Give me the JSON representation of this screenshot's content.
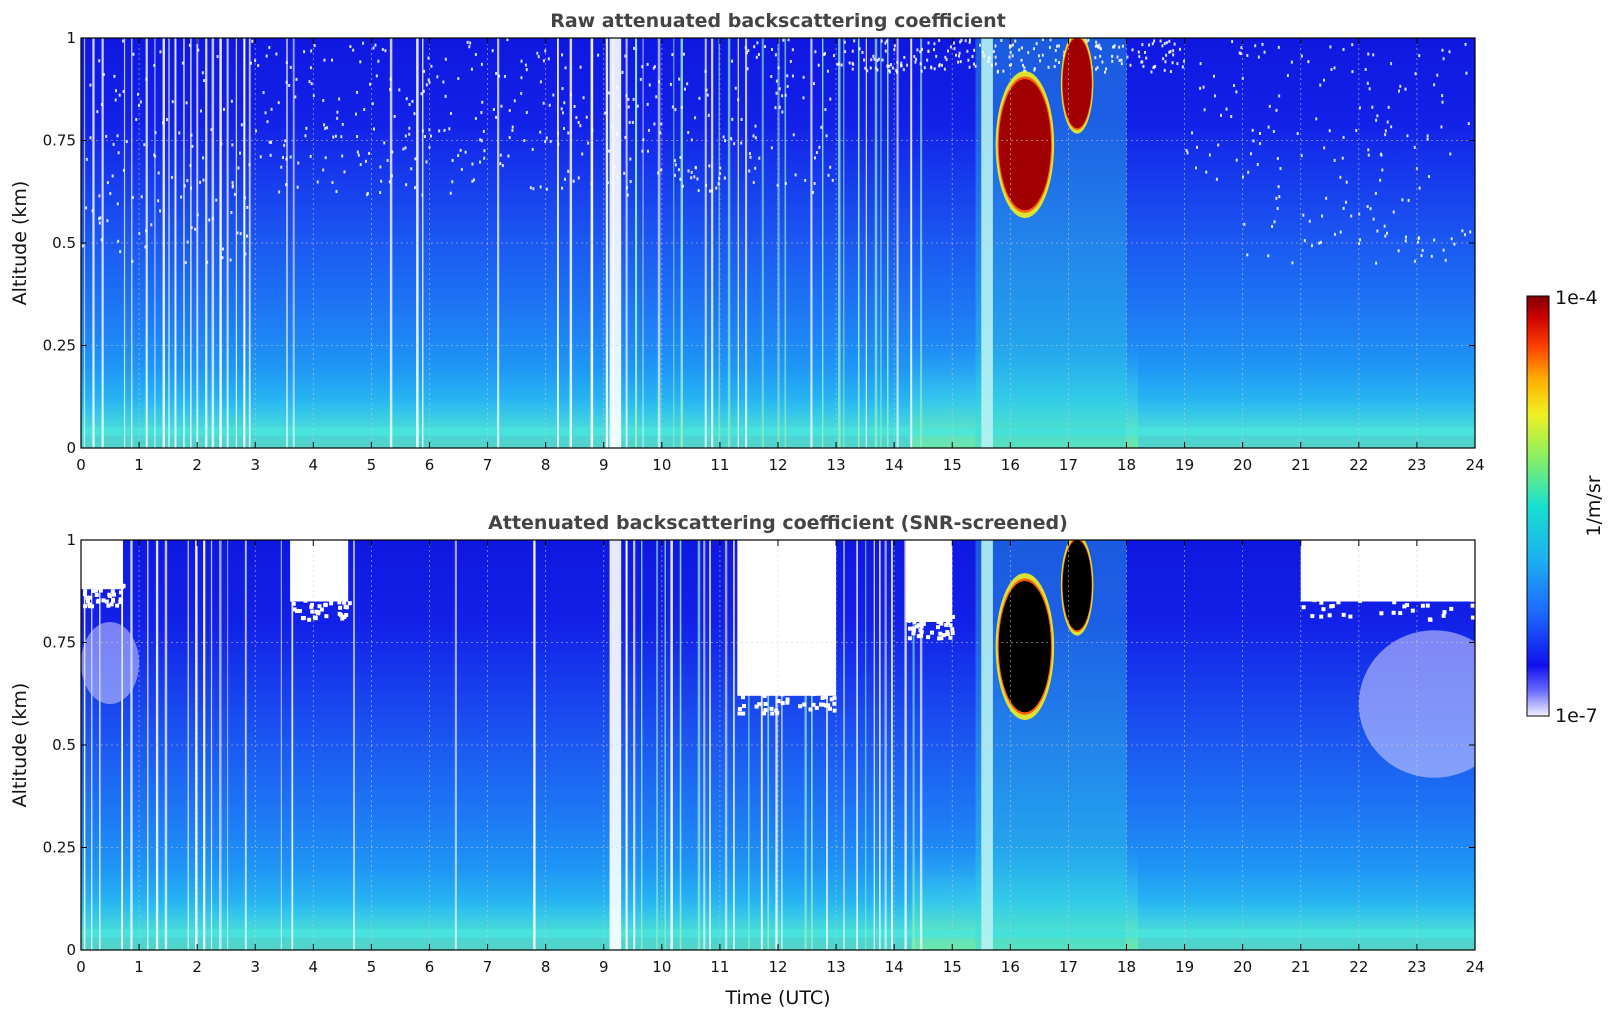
{
  "chart_data": [
    {
      "type": "heatmap",
      "title": "Raw attenuated backscattering coefficient",
      "xlabel": "",
      "ylabel": "Altitude (km)",
      "xlim": [
        0,
        24
      ],
      "ylim": [
        0,
        1
      ],
      "x_ticks": [
        "0",
        "1",
        "2",
        "3",
        "4",
        "5",
        "6",
        "7",
        "8",
        "9",
        "10",
        "11",
        "12",
        "13",
        "14",
        "15",
        "16",
        "17",
        "18",
        "19",
        "20",
        "21",
        "22",
        "23",
        "24"
      ],
      "y_ticks": [
        "0",
        "0.25",
        "0.5",
        "0.75",
        "1"
      ],
      "grid": true,
      "screened": false,
      "bright_columns": [
        [
          9.1,
          9.3
        ],
        [
          15.5,
          15.7
        ]
      ],
      "cloud_features": [
        {
          "x": [
            15.8,
            16.7
          ],
          "y": [
            0.58,
            0.9
          ],
          "level": "max"
        },
        {
          "x": [
            16.9,
            17.4
          ],
          "y": [
            0.78,
            1.0
          ],
          "level": "max"
        }
      ]
    },
    {
      "type": "heatmap",
      "title": "Attenuated backscattering coefficient (SNR-screened)",
      "xlabel": "Time (UTC)",
      "ylabel": "Altitude (km)",
      "xlim": [
        0,
        24
      ],
      "ylim": [
        0,
        1
      ],
      "x_ticks": [
        "0",
        "1",
        "2",
        "3",
        "4",
        "5",
        "6",
        "7",
        "8",
        "9",
        "10",
        "11",
        "12",
        "13",
        "14",
        "15",
        "16",
        "17",
        "18",
        "19",
        "20",
        "21",
        "22",
        "23",
        "24"
      ],
      "y_ticks": [
        "0",
        "0.25",
        "0.5",
        "0.75",
        "1"
      ],
      "grid": true,
      "screened": true,
      "bright_columns": [
        [
          9.1,
          9.3
        ],
        [
          15.5,
          15.7
        ]
      ],
      "cloud_features": [
        {
          "x": [
            15.8,
            16.7
          ],
          "y": [
            0.58,
            0.9
          ],
          "level": "saturated"
        },
        {
          "x": [
            16.9,
            17.4
          ],
          "y": [
            0.78,
            1.0
          ],
          "level": "saturated"
        }
      ],
      "masked_regions": [
        {
          "x": [
            11.3,
            13.0
          ],
          "y": [
            0.62,
            1.0
          ]
        },
        {
          "x": [
            3.6,
            4.6
          ],
          "y": [
            0.85,
            1.0
          ]
        },
        {
          "x": [
            14.2,
            15.0
          ],
          "y": [
            0.8,
            1.0
          ]
        },
        {
          "x": [
            21.0,
            24.0
          ],
          "y": [
            0.85,
            1.0
          ]
        },
        {
          "x": [
            0.0,
            0.7
          ],
          "y": [
            0.88,
            1.0
          ]
        }
      ]
    }
  ],
  "colorbar": {
    "label": "1/m/sr",
    "max_label": "1e-4",
    "min_label": "1e-7",
    "scale": "log",
    "colormap": "jet",
    "range": [
      1e-07,
      0.0001
    ]
  }
}
